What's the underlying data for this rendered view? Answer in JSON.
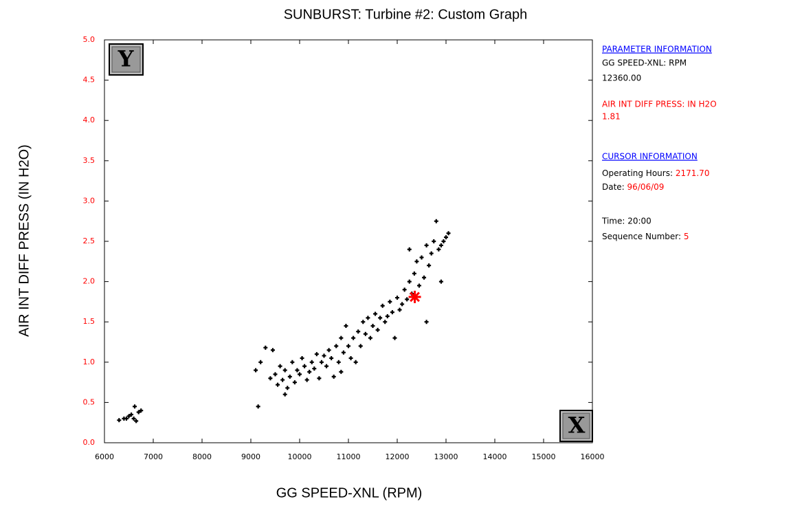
{
  "chart_data": {
    "type": "scatter",
    "title": "SUNBURST: Turbine #2: Custom Graph",
    "x_label": "GG SPEED-XNL (RPM)",
    "y_label": "AIR INT DIFF PRESS (IN H2O)",
    "xlim": [
      6000,
      16000
    ],
    "ylim": [
      0,
      5
    ],
    "xticks": [
      6000,
      7000,
      8000,
      9000,
      10000,
      11000,
      12000,
      13000,
      14000,
      15000,
      16000
    ],
    "yticks": [
      {
        "value": 0,
        "label": "0.0"
      },
      0.5,
      {
        "value": 1,
        "label": "1.0"
      },
      1.5,
      {
        "value": 2,
        "label": "2.0"
      },
      2.5,
      {
        "value": 3,
        "label": "3.0"
      },
      3.5,
      {
        "value": 4,
        "label": "4.0"
      },
      4.5,
      {
        "value": 5,
        "label": "5.0"
      }
    ],
    "color": "#000000",
    "ytick_color": "#ff0000",
    "x": [
      6300,
      6400,
      6450,
      6500,
      6550,
      6600,
      6620,
      6650,
      6700,
      6750,
      9150,
      9100,
      9200,
      9300,
      9450,
      9400,
      9500,
      9550,
      9600,
      9650,
      9700,
      9700,
      9750,
      9800,
      9850,
      9900,
      9950,
      10000,
      10050,
      10100,
      10150,
      10200,
      10250,
      10300,
      10350,
      10400,
      10450,
      10500,
      10550,
      10600,
      10650,
      10700,
      10750,
      10800,
      10850,
      10850,
      10900,
      10950,
      11000,
      11050,
      11100,
      11150,
      11200,
      11250,
      11300,
      11350,
      11400,
      11450,
      11500,
      11550,
      11600,
      11650,
      11700,
      11750,
      11800,
      11850,
      11900,
      11950,
      12000,
      12050,
      12100,
      12150,
      12200,
      12250,
      12300,
      12350,
      12400,
      12450,
      12500,
      12550,
      12600,
      12600,
      12650,
      12700,
      12750,
      12800,
      12850,
      12900,
      12950,
      13000,
      13050,
      12900,
      12250
    ],
    "values": [
      0.28,
      0.3,
      0.3,
      0.33,
      0.35,
      0.3,
      0.45,
      0.27,
      0.38,
      0.4,
      0.45,
      0.9,
      1.0,
      1.18,
      1.15,
      0.8,
      0.85,
      0.72,
      0.95,
      0.78,
      0.6,
      0.9,
      0.68,
      0.82,
      1.0,
      0.75,
      0.9,
      0.85,
      1.05,
      0.95,
      0.78,
      0.88,
      1.0,
      0.92,
      1.1,
      0.8,
      1.0,
      1.08,
      0.95,
      1.15,
      1.05,
      0.82,
      1.2,
      1.0,
      1.3,
      0.88,
      1.12,
      1.45,
      1.2,
      1.05,
      1.3,
      1.0,
      1.38,
      1.2,
      1.5,
      1.35,
      1.55,
      1.3,
      1.45,
      1.6,
      1.4,
      1.55,
      1.7,
      1.5,
      1.57,
      1.75,
      1.62,
      1.3,
      1.8,
      1.65,
      1.72,
      1.9,
      1.78,
      2.0,
      1.85,
      2.1,
      2.25,
      1.95,
      2.3,
      2.05,
      2.45,
      1.5,
      2.2,
      2.35,
      2.5,
      2.75,
      2.4,
      2.45,
      2.5,
      2.55,
      2.6,
      2.0,
      2.4
    ],
    "cursor": {
      "x": 12360,
      "y": 1.81,
      "color": "#ff0000"
    }
  },
  "controls": {
    "y_button": "Y",
    "x_button": "X"
  },
  "info_panel": {
    "parameter_heading": "PARAMETER INFORMATION",
    "x_param": "GG SPEED-XNL: RPM",
    "x_value": "12360.00",
    "y_param": "AIR INT DIFF PRESS: IN H2O",
    "y_value": "1.81",
    "cursor_heading": "CURSOR INFORMATION",
    "hours_label": "Operating Hours: ",
    "hours_value": "2171.70",
    "date_label": "Date: ",
    "date_value": "96/06/09",
    "time": "Time: 20:00",
    "seq_label": "Sequence Number: ",
    "seq_value": "5"
  }
}
